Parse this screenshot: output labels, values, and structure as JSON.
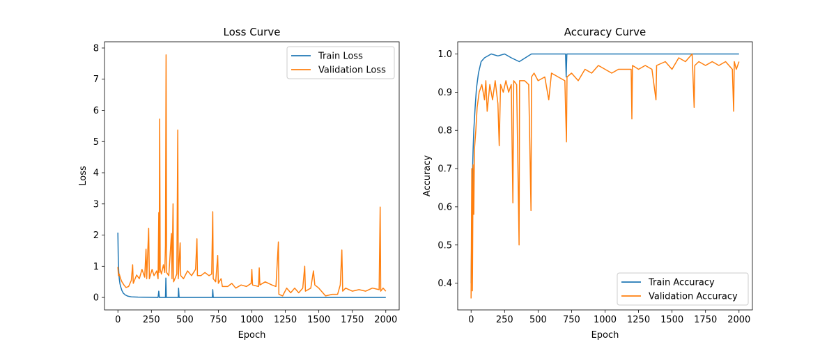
{
  "chart_data": [
    {
      "type": "line",
      "title": "Loss Curve",
      "xlabel": "Epoch",
      "ylabel": "Loss",
      "xlim": [
        -100,
        2100
      ],
      "ylim": [
        -0.4,
        8.2
      ],
      "xticks": [
        0,
        250,
        500,
        750,
        1000,
        1250,
        1500,
        1750,
        2000
      ],
      "yticks": [
        0,
        1,
        2,
        3,
        4,
        5,
        6,
        7,
        8
      ],
      "grid": false,
      "legend_placement": "top-right",
      "series": [
        {
          "name": "Train Loss",
          "color": "#1f77b4",
          "points": [
            [
              0,
              2.08
            ],
            [
              3,
              1.2
            ],
            [
              6,
              0.85
            ],
            [
              10,
              0.6
            ],
            [
              15,
              0.45
            ],
            [
              20,
              0.35
            ],
            [
              30,
              0.22
            ],
            [
              40,
              0.14
            ],
            [
              55,
              0.08
            ],
            [
              75,
              0.04
            ],
            [
              100,
              0.02
            ],
            [
              150,
              0.01
            ],
            [
              300,
              0.0
            ],
            [
              305,
              0.2
            ],
            [
              310,
              0.0
            ],
            [
              355,
              0.0
            ],
            [
              358,
              0.62
            ],
            [
              362,
              0.0
            ],
            [
              450,
              0.0
            ],
            [
              453,
              0.3
            ],
            [
              457,
              0.0
            ],
            [
              705,
              0.0
            ],
            [
              708,
              0.25
            ],
            [
              712,
              0.0
            ],
            [
              2000,
              0.0
            ]
          ]
        },
        {
          "name": "Validation Loss",
          "color": "#ff7f0e",
          "points": [
            [
              0,
              0.98
            ],
            [
              4,
              0.7
            ],
            [
              10,
              0.75
            ],
            [
              20,
              0.6
            ],
            [
              30,
              0.5
            ],
            [
              45,
              0.4
            ],
            [
              60,
              0.32
            ],
            [
              80,
              0.35
            ],
            [
              100,
              0.55
            ],
            [
              110,
              1.05
            ],
            [
              115,
              0.45
            ],
            [
              140,
              0.72
            ],
            [
              160,
              0.6
            ],
            [
              180,
              0.9
            ],
            [
              200,
              0.65
            ],
            [
              210,
              1.55
            ],
            [
              215,
              0.6
            ],
            [
              230,
              2.22
            ],
            [
              235,
              0.6
            ],
            [
              255,
              0.9
            ],
            [
              270,
              0.7
            ],
            [
              290,
              0.85
            ],
            [
              300,
              0.6
            ],
            [
              305,
              2.72
            ],
            [
              308,
              0.8
            ],
            [
              312,
              5.72
            ],
            [
              316,
              0.9
            ],
            [
              325,
              0.75
            ],
            [
              340,
              1.05
            ],
            [
              350,
              0.8
            ],
            [
              355,
              1.65
            ],
            [
              360,
              7.78
            ],
            [
              364,
              0.8
            ],
            [
              380,
              0.7
            ],
            [
              400,
              2.05
            ],
            [
              404,
              0.6
            ],
            [
              412,
              3.0
            ],
            [
              416,
              0.5
            ],
            [
              440,
              0.75
            ],
            [
              447,
              5.37
            ],
            [
              451,
              0.6
            ],
            [
              465,
              1.75
            ],
            [
              469,
              0.7
            ],
            [
              490,
              0.6
            ],
            [
              520,
              0.85
            ],
            [
              550,
              0.7
            ],
            [
              580,
              0.9
            ],
            [
              590,
              1.88
            ],
            [
              594,
              0.7
            ],
            [
              620,
              0.7
            ],
            [
              650,
              0.8
            ],
            [
              680,
              0.7
            ],
            [
              700,
              0.75
            ],
            [
              708,
              2.75
            ],
            [
              712,
              0.6
            ],
            [
              730,
              0.5
            ],
            [
              745,
              1.35
            ],
            [
              750,
              0.45
            ],
            [
              770,
              0.6
            ],
            [
              780,
              0.35
            ],
            [
              820,
              0.35
            ],
            [
              850,
              0.45
            ],
            [
              880,
              0.3
            ],
            [
              920,
              0.4
            ],
            [
              960,
              0.35
            ],
            [
              995,
              0.45
            ],
            [
              1000,
              0.9
            ],
            [
              1005,
              0.4
            ],
            [
              1050,
              0.35
            ],
            [
              1055,
              0.95
            ],
            [
              1060,
              0.4
            ],
            [
              1100,
              0.5
            ],
            [
              1150,
              0.4
            ],
            [
              1180,
              0.35
            ],
            [
              1198,
              1.78
            ],
            [
              1202,
              0.1
            ],
            [
              1230,
              0.05
            ],
            [
              1260,
              0.3
            ],
            [
              1290,
              0.15
            ],
            [
              1320,
              0.3
            ],
            [
              1350,
              0.15
            ],
            [
              1380,
              0.3
            ],
            [
              1395,
              1.0
            ],
            [
              1400,
              0.2
            ],
            [
              1440,
              0.3
            ],
            [
              1460,
              0.85
            ],
            [
              1470,
              0.4
            ],
            [
              1500,
              0.3
            ],
            [
              1550,
              0.05
            ],
            [
              1600,
              0.1
            ],
            [
              1640,
              0.1
            ],
            [
              1660,
              0.4
            ],
            [
              1672,
              1.52
            ],
            [
              1678,
              0.2
            ],
            [
              1700,
              0.3
            ],
            [
              1750,
              0.2
            ],
            [
              1800,
              0.25
            ],
            [
              1850,
              0.2
            ],
            [
              1900,
              0.3
            ],
            [
              1950,
              0.25
            ],
            [
              1958,
              2.9
            ],
            [
              1962,
              0.2
            ],
            [
              1980,
              0.3
            ],
            [
              2000,
              0.2
            ]
          ]
        }
      ]
    },
    {
      "type": "line",
      "title": "Accuracy Curve",
      "xlabel": "Epoch",
      "ylabel": "Accuracy",
      "xlim": [
        -100,
        2100
      ],
      "ylim": [
        0.33,
        1.032
      ],
      "xticks": [
        0,
        250,
        500,
        750,
        1000,
        1250,
        1500,
        1750,
        2000
      ],
      "yticks": [
        0.4,
        0.5,
        0.6,
        0.7,
        0.8,
        0.9,
        1.0
      ],
      "grid": false,
      "legend_placement": "bottom-right",
      "series": [
        {
          "name": "Train Accuracy",
          "color": "#1f77b4",
          "points": [
            [
              0,
              0.4
            ],
            [
              5,
              0.55
            ],
            [
              10,
              0.68
            ],
            [
              15,
              0.75
            ],
            [
              20,
              0.8
            ],
            [
              30,
              0.86
            ],
            [
              40,
              0.91
            ],
            [
              55,
              0.95
            ],
            [
              75,
              0.98
            ],
            [
              100,
              0.99
            ],
            [
              150,
              1.0
            ],
            [
              200,
              0.995
            ],
            [
              250,
              1.0
            ],
            [
              300,
              0.99
            ],
            [
              360,
              0.98
            ],
            [
              450,
              1.0
            ],
            [
              500,
              1.0
            ],
            [
              600,
              1.0
            ],
            [
              705,
              1.0
            ],
            [
              710,
              0.94
            ],
            [
              715,
              1.0
            ],
            [
              1200,
              1.0
            ],
            [
              1380,
              1.0
            ],
            [
              2000,
              1.0
            ]
          ]
        },
        {
          "name": "Validation Accuracy",
          "color": "#ff7f0e",
          "points": [
            [
              0,
              0.36
            ],
            [
              5,
              0.7
            ],
            [
              10,
              0.38
            ],
            [
              15,
              0.71
            ],
            [
              20,
              0.58
            ],
            [
              25,
              0.75
            ],
            [
              35,
              0.8
            ],
            [
              45,
              0.86
            ],
            [
              60,
              0.9
            ],
            [
              80,
              0.92
            ],
            [
              100,
              0.88
            ],
            [
              110,
              0.93
            ],
            [
              120,
              0.85
            ],
            [
              140,
              0.92
            ],
            [
              160,
              0.88
            ],
            [
              180,
              0.93
            ],
            [
              200,
              0.87
            ],
            [
              210,
              0.76
            ],
            [
              220,
              0.92
            ],
            [
              240,
              0.9
            ],
            [
              260,
              0.93
            ],
            [
              280,
              0.9
            ],
            [
              300,
              0.92
            ],
            [
              312,
              0.61
            ],
            [
              318,
              0.93
            ],
            [
              340,
              0.92
            ],
            [
              358,
              0.5
            ],
            [
              362,
              0.93
            ],
            [
              400,
              0.93
            ],
            [
              430,
              0.92
            ],
            [
              447,
              0.59
            ],
            [
              451,
              0.94
            ],
            [
              470,
              0.95
            ],
            [
              500,
              0.93
            ],
            [
              550,
              0.94
            ],
            [
              580,
              0.88
            ],
            [
              600,
              0.95
            ],
            [
              650,
              0.94
            ],
            [
              700,
              0.93
            ],
            [
              712,
              0.77
            ],
            [
              716,
              0.94
            ],
            [
              750,
              0.95
            ],
            [
              800,
              0.93
            ],
            [
              850,
              0.96
            ],
            [
              900,
              0.95
            ],
            [
              950,
              0.97
            ],
            [
              1000,
              0.96
            ],
            [
              1050,
              0.95
            ],
            [
              1100,
              0.96
            ],
            [
              1150,
              0.96
            ],
            [
              1195,
              0.96
            ],
            [
              1200,
              0.83
            ],
            [
              1205,
              0.97
            ],
            [
              1250,
              0.96
            ],
            [
              1300,
              0.97
            ],
            [
              1350,
              0.96
            ],
            [
              1380,
              0.88
            ],
            [
              1385,
              0.97
            ],
            [
              1450,
              0.98
            ],
            [
              1500,
              0.96
            ],
            [
              1550,
              0.99
            ],
            [
              1600,
              0.98
            ],
            [
              1650,
              1.0
            ],
            [
              1665,
              0.86
            ],
            [
              1670,
              0.97
            ],
            [
              1700,
              0.98
            ],
            [
              1750,
              0.97
            ],
            [
              1800,
              0.98
            ],
            [
              1850,
              0.97
            ],
            [
              1900,
              0.98
            ],
            [
              1950,
              0.96
            ],
            [
              1960,
              0.85
            ],
            [
              1965,
              0.98
            ],
            [
              1980,
              0.96
            ],
            [
              2000,
              0.98
            ]
          ]
        }
      ]
    }
  ]
}
